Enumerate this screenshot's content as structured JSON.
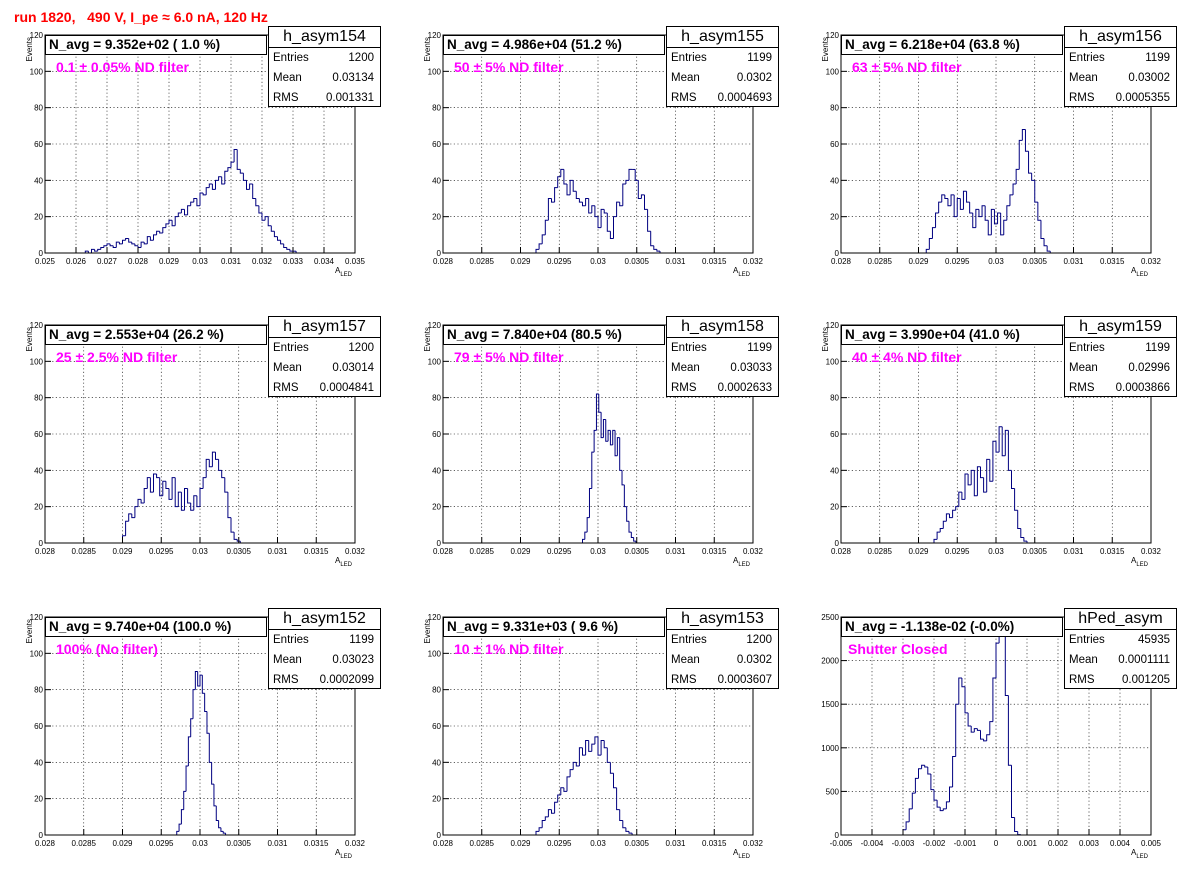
{
  "run_title": "run 1820,   490 V, I_pe ≈ 6.0 nA, 120 Hz",
  "stat_labels": {
    "entries": "Entries",
    "mean": "Mean",
    "rms": "RMS"
  },
  "chart_data": [
    {
      "type": "bar",
      "histogram_name": "h_asym154",
      "navg_text": "N_avg = 9.352e+02 ( 1.0 %)",
      "filter_text": "0.1 ± 0.05% ND filter",
      "entries": "1200",
      "mean": "0.03134",
      "rms": "0.001331",
      "xlabel": "A_LED",
      "ylabel": "Events",
      "xlim": [
        0.025,
        0.035
      ],
      "ylim": [
        0,
        120
      ],
      "xticks": [
        0.025,
        0.026,
        0.027,
        0.028,
        0.029,
        0.03,
        0.031,
        0.032,
        0.033,
        0.034,
        0.035
      ],
      "xtick_labels": [
        "0.025",
        "0.026",
        "0.027",
        "0.028",
        "0.029",
        "0.03",
        "0.031",
        "0.032",
        "0.033",
        "0.034",
        "0.035"
      ],
      "yticks": [
        0,
        20,
        40,
        60,
        80,
        100,
        120
      ],
      "ytick_labels": [
        "0",
        "20",
        "40",
        "60",
        "80",
        "100",
        "120"
      ],
      "x_start": 0.0255,
      "bin_width": 0.0001,
      "values": [
        0,
        0,
        0,
        0,
        0,
        0,
        0,
        0,
        1,
        0,
        2,
        1,
        2,
        3,
        4,
        5,
        4,
        3,
        6,
        5,
        7,
        8,
        6,
        5,
        4,
        3,
        6,
        5,
        9,
        7,
        10,
        12,
        11,
        14,
        16,
        18,
        15,
        20,
        22,
        24,
        21,
        26,
        28,
        30,
        26,
        33,
        32,
        36,
        38,
        35,
        40,
        42,
        38,
        45,
        47,
        50,
        57,
        46,
        44,
        40,
        35,
        38,
        30,
        26,
        22,
        18,
        20,
        15,
        12,
        9,
        7,
        5,
        3,
        2,
        1,
        1,
        0,
        0,
        0,
        0
      ]
    },
    {
      "type": "bar",
      "histogram_name": "h_asym155",
      "navg_text": "N_avg = 4.986e+04 (51.2 %)",
      "filter_text": "50 ± 5% ND filter",
      "entries": "1199",
      "mean": "0.0302",
      "rms": "0.0004693",
      "xlabel": "A_LED",
      "ylabel": "Events",
      "xlim": [
        0.028,
        0.032
      ],
      "ylim": [
        0,
        120
      ],
      "xticks": [
        0.028,
        0.0285,
        0.029,
        0.0295,
        0.03,
        0.0305,
        0.031,
        0.0315,
        0.032
      ],
      "xtick_labels": [
        "0.028",
        "0.0285",
        "0.029",
        "0.0295",
        "0.03",
        "0.0305",
        "0.031",
        "0.0315",
        "0.032"
      ],
      "yticks": [
        0,
        20,
        40,
        60,
        80,
        100,
        120
      ],
      "ytick_labels": [
        "0",
        "20",
        "40",
        "60",
        "80",
        "100",
        "120"
      ],
      "x_start": 0.0292,
      "bin_width": 4e-05,
      "values": [
        2,
        5,
        10,
        18,
        30,
        28,
        36,
        42,
        46,
        38,
        32,
        40,
        34,
        30,
        28,
        26,
        30,
        22,
        26,
        20,
        14,
        24,
        22,
        12,
        8,
        20,
        28,
        26,
        38,
        40,
        46,
        46,
        40,
        30,
        32,
        24,
        12,
        4,
        2,
        1
      ]
    },
    {
      "type": "bar",
      "histogram_name": "h_asym156",
      "navg_text": "N_avg = 6.218e+04 (63.8 %)",
      "filter_text": "63 ± 5% ND filter",
      "entries": "1199",
      "mean": "0.03002",
      "rms": "0.0005355",
      "xlabel": "A_LED",
      "ylabel": "Events",
      "xlim": [
        0.028,
        0.032
      ],
      "ylim": [
        0,
        120
      ],
      "xticks": [
        0.028,
        0.0285,
        0.029,
        0.0295,
        0.03,
        0.0305,
        0.031,
        0.0315,
        0.032
      ],
      "xtick_labels": [
        "0.028",
        "0.0285",
        "0.029",
        "0.0295",
        "0.03",
        "0.0305",
        "0.031",
        "0.0315",
        "0.032"
      ],
      "yticks": [
        0,
        20,
        40,
        60,
        80,
        100,
        120
      ],
      "ytick_labels": [
        "0",
        "20",
        "40",
        "60",
        "80",
        "100",
        "120"
      ],
      "x_start": 0.0291,
      "bin_width": 4e-05,
      "values": [
        2,
        8,
        14,
        22,
        28,
        32,
        30,
        26,
        32,
        20,
        30,
        24,
        34,
        28,
        22,
        14,
        24,
        20,
        26,
        18,
        10,
        24,
        16,
        22,
        10,
        18,
        26,
        32,
        38,
        46,
        62,
        68,
        56,
        44,
        40,
        28,
        18,
        8,
        4,
        1
      ]
    },
    {
      "type": "bar",
      "histogram_name": "h_asym157",
      "navg_text": "N_avg = 2.553e+04 (26.2 %)",
      "filter_text": "25 ± 2.5% ND filter",
      "entries": "1200",
      "mean": "0.03014",
      "rms": "0.0004841",
      "xlabel": "A_LED",
      "ylabel": "Events",
      "xlim": [
        0.028,
        0.032
      ],
      "ylim": [
        0,
        120
      ],
      "xticks": [
        0.028,
        0.0285,
        0.029,
        0.0295,
        0.03,
        0.0305,
        0.031,
        0.0315,
        0.032
      ],
      "xtick_labels": [
        "0.028",
        "0.0285",
        "0.029",
        "0.0295",
        "0.03",
        "0.0305",
        "0.031",
        "0.0315",
        "0.032"
      ],
      "yticks": [
        0,
        20,
        40,
        60,
        80,
        100,
        120
      ],
      "ytick_labels": [
        "0",
        "20",
        "40",
        "60",
        "80",
        "100",
        "120"
      ],
      "x_start": 0.029,
      "bin_width": 4e-05,
      "values": [
        4,
        12,
        16,
        14,
        20,
        24,
        22,
        30,
        36,
        28,
        38,
        36,
        26,
        34,
        30,
        24,
        36,
        20,
        28,
        18,
        30,
        22,
        18,
        26,
        20,
        30,
        36,
        46,
        42,
        50,
        46,
        40,
        36,
        28,
        14,
        6,
        2,
        1
      ]
    },
    {
      "type": "bar",
      "histogram_name": "h_asym158",
      "navg_text": "N_avg = 7.840e+04 (80.5 %)",
      "filter_text": "79 ± 5% ND filter",
      "entries": "1199",
      "mean": "0.03033",
      "rms": "0.0002633",
      "xlabel": "A_LED",
      "ylabel": "Events",
      "xlim": [
        0.028,
        0.032
      ],
      "ylim": [
        0,
        120
      ],
      "xticks": [
        0.028,
        0.0285,
        0.029,
        0.0295,
        0.03,
        0.0305,
        0.031,
        0.0315,
        0.032
      ],
      "xtick_labels": [
        "0.028",
        "0.0285",
        "0.029",
        "0.0295",
        "0.03",
        "0.0305",
        "0.031",
        "0.0315",
        "0.032"
      ],
      "yticks": [
        0,
        20,
        40,
        60,
        80,
        100,
        120
      ],
      "ytick_labels": [
        "0",
        "20",
        "40",
        "60",
        "80",
        "100",
        "120"
      ],
      "x_start": 0.0298,
      "bin_width": 3e-05,
      "values": [
        2,
        6,
        14,
        30,
        50,
        62,
        82,
        72,
        58,
        68,
        56,
        62,
        54,
        62,
        48,
        58,
        40,
        32,
        20,
        12,
        6,
        3,
        1
      ]
    },
    {
      "type": "bar",
      "histogram_name": "h_asym159",
      "navg_text": "N_avg = 3.990e+04 (41.0 %)",
      "filter_text": "40 ± 4% ND filter",
      "entries": "1199",
      "mean": "0.02996",
      "rms": "0.0003866",
      "xlabel": "A_LED",
      "ylabel": "Events",
      "xlim": [
        0.028,
        0.032
      ],
      "ylim": [
        0,
        120
      ],
      "xticks": [
        0.028,
        0.0285,
        0.029,
        0.0295,
        0.03,
        0.0305,
        0.031,
        0.0315,
        0.032
      ],
      "xtick_labels": [
        "0.028",
        "0.0285",
        "0.029",
        "0.0295",
        "0.03",
        "0.0305",
        "0.031",
        "0.0315",
        "0.032"
      ],
      "yticks": [
        0,
        20,
        40,
        60,
        80,
        100,
        120
      ],
      "ytick_labels": [
        "0",
        "20",
        "40",
        "60",
        "80",
        "100",
        "120"
      ],
      "x_start": 0.0292,
      "bin_width": 4e-05,
      "values": [
        2,
        6,
        8,
        12,
        16,
        14,
        18,
        20,
        28,
        24,
        38,
        32,
        40,
        26,
        42,
        36,
        28,
        46,
        34,
        56,
        50,
        64,
        48,
        62,
        40,
        30,
        18,
        8,
        3,
        1
      ]
    },
    {
      "type": "bar",
      "histogram_name": "h_asym152",
      "navg_text": "N_avg = 9.740e+04 (100.0 %)",
      "filter_text": "100% (No filter)",
      "entries": "1199",
      "mean": "0.03023",
      "rms": "0.0002099",
      "xlabel": "A_LED",
      "ylabel": "Events",
      "xlim": [
        0.028,
        0.032
      ],
      "ylim": [
        0,
        120
      ],
      "xticks": [
        0.028,
        0.0285,
        0.029,
        0.0295,
        0.03,
        0.0305,
        0.031,
        0.0315,
        0.032
      ],
      "xtick_labels": [
        "0.028",
        "0.0285",
        "0.029",
        "0.0295",
        "0.03",
        "0.0305",
        "0.031",
        "0.0315",
        "0.032"
      ],
      "yticks": [
        0,
        20,
        40,
        60,
        80,
        100,
        120
      ],
      "ytick_labels": [
        "0",
        "20",
        "40",
        "60",
        "80",
        "100",
        "120"
      ],
      "x_start": 0.0297,
      "bin_width": 3e-05,
      "values": [
        2,
        6,
        14,
        24,
        38,
        54,
        64,
        80,
        90,
        82,
        88,
        78,
        68,
        56,
        40,
        28,
        16,
        8,
        4,
        2,
        1
      ]
    },
    {
      "type": "bar",
      "histogram_name": "h_asym153",
      "navg_text": "N_avg = 9.331e+03 ( 9.6 %)",
      "filter_text": "10 ± 1% ND filter",
      "entries": "1200",
      "mean": "0.0302",
      "rms": "0.0003607",
      "xlabel": "A_LED",
      "ylabel": "Events",
      "xlim": [
        0.028,
        0.032
      ],
      "ylim": [
        0,
        120
      ],
      "xticks": [
        0.028,
        0.0285,
        0.029,
        0.0295,
        0.03,
        0.0305,
        0.031,
        0.0315,
        0.032
      ],
      "xtick_labels": [
        "0.028",
        "0.0285",
        "0.029",
        "0.0295",
        "0.03",
        "0.0305",
        "0.031",
        "0.0315",
        "0.032"
      ],
      "yticks": [
        0,
        20,
        40,
        60,
        80,
        100,
        120
      ],
      "ytick_labels": [
        "0",
        "20",
        "40",
        "60",
        "80",
        "100",
        "120"
      ],
      "x_start": 0.0292,
      "bin_width": 4e-05,
      "values": [
        2,
        4,
        8,
        10,
        14,
        12,
        18,
        22,
        26,
        24,
        32,
        36,
        40,
        38,
        48,
        44,
        52,
        46,
        50,
        54,
        44,
        52,
        48,
        40,
        34,
        26,
        14,
        8,
        4,
        2,
        1
      ]
    },
    {
      "type": "bar",
      "histogram_name": "hPed_asym",
      "navg_text": "N_avg = -1.138e-02 (-0.0%)",
      "filter_text": "Shutter Closed",
      "entries": "45935",
      "mean": "0.0001111",
      "rms": "0.001205",
      "xlabel": "A_LED",
      "ylabel": "",
      "xlim": [
        -0.005,
        0.005
      ],
      "ylim": [
        0,
        2500
      ],
      "xticks": [
        -0.005,
        -0.004,
        -0.003,
        -0.002,
        -0.001,
        0,
        0.001,
        0.002,
        0.003,
        0.004,
        0.005
      ],
      "xtick_labels": [
        "-0.005",
        "-0.004",
        "-0.003",
        "-0.002",
        "-0.001",
        "0",
        "0.001",
        "0.002",
        "0.003",
        "0.004",
        "0.005"
      ],
      "yticks": [
        0,
        500,
        1000,
        1500,
        2000,
        2500
      ],
      "ytick_labels": [
        "0",
        "500",
        "1000",
        "1500",
        "2000",
        "2500"
      ],
      "x_start": -0.003,
      "bin_width": 0.0001,
      "values": [
        60,
        150,
        300,
        480,
        650,
        760,
        800,
        780,
        700,
        520,
        400,
        320,
        280,
        300,
        380,
        550,
        900,
        1500,
        1800,
        1700,
        1400,
        1250,
        1180,
        1220,
        1200,
        1100,
        1080,
        1150,
        1300,
        1800,
        2200,
        2420,
        2300,
        1600,
        800,
        200,
        40,
        5
      ]
    }
  ]
}
